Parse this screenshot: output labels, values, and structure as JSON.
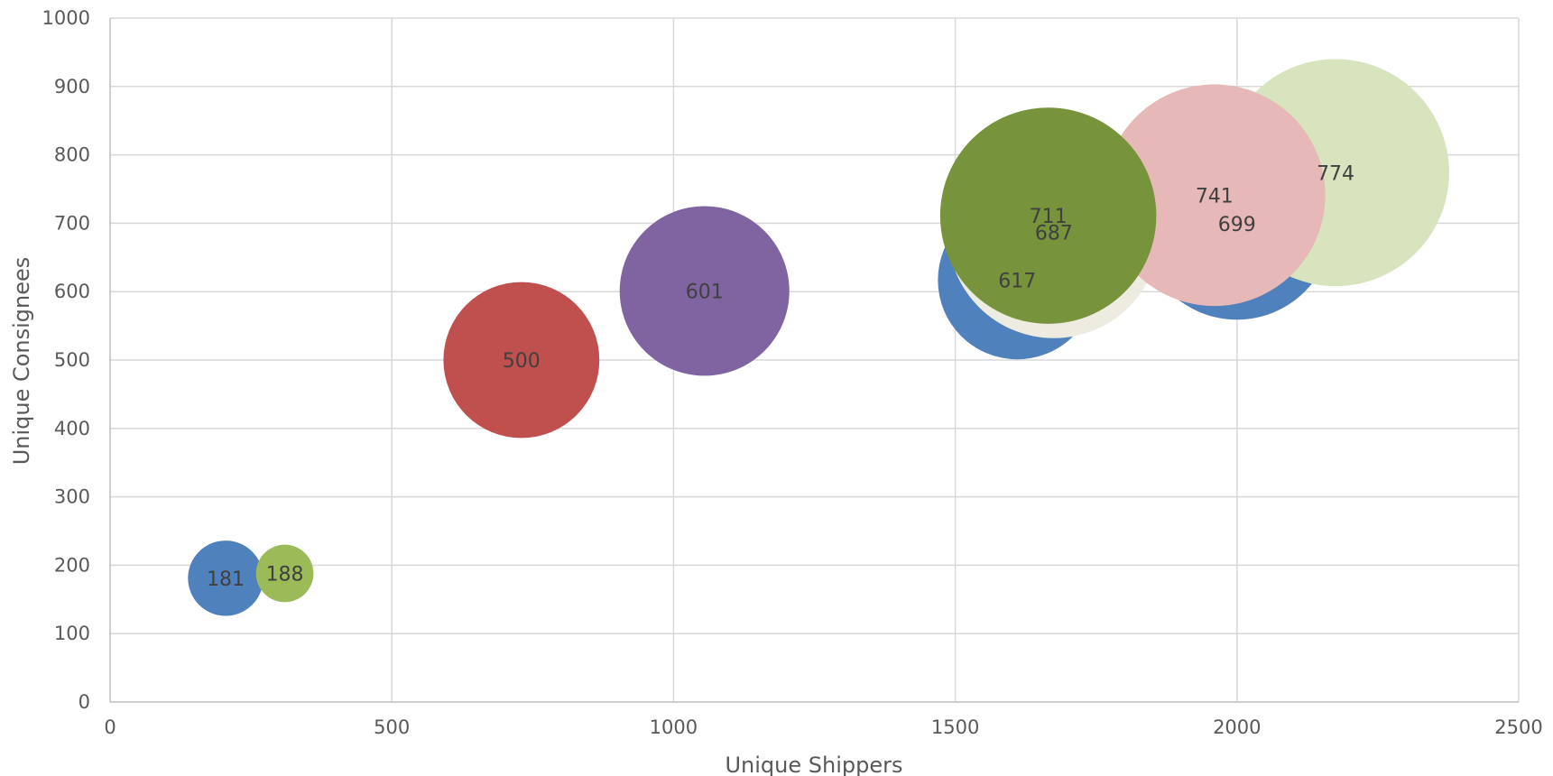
{
  "chart_data": {
    "type": "bubble",
    "xlabel": "Unique Shippers",
    "ylabel": "Unique Consignees",
    "xlim": [
      0,
      2500
    ],
    "ylim": [
      0,
      1000
    ],
    "x_ticks": [
      0,
      500,
      1000,
      1500,
      2000,
      2500
    ],
    "y_ticks": [
      0,
      100,
      200,
      300,
      400,
      500,
      600,
      700,
      800,
      900,
      1000
    ],
    "grid": true,
    "points": [
      {
        "x": 205,
        "y": 181,
        "size": 55,
        "label": "181",
        "color": "#4f81bd"
      },
      {
        "x": 310,
        "y": 188,
        "size": 42,
        "label": "188",
        "color": "#9bbb59"
      },
      {
        "x": 730,
        "y": 500,
        "size": 114,
        "label": "500",
        "color": "#c0504d"
      },
      {
        "x": 1055,
        "y": 601,
        "size": 124,
        "label": "601",
        "color": "#8064a2"
      },
      {
        "x": 1610,
        "y": 617,
        "size": 116,
        "label": "617",
        "color": "#4f81bd"
      },
      {
        "x": 2000,
        "y": 699,
        "size": 140,
        "label": "699",
        "color": "#4f81bd"
      },
      {
        "x": 1675,
        "y": 687,
        "size": 155,
        "label": "687",
        "color": "#eeece1"
      },
      {
        "x": 2175,
        "y": 774,
        "size": 166,
        "label": "774",
        "color": "#d7e4bd"
      },
      {
        "x": 1960,
        "y": 741,
        "size": 162,
        "label": "741",
        "color": "#e6b9b8"
      },
      {
        "x": 1665,
        "y": 711,
        "size": 158,
        "label": "711",
        "color": "#77933c"
      }
    ]
  }
}
